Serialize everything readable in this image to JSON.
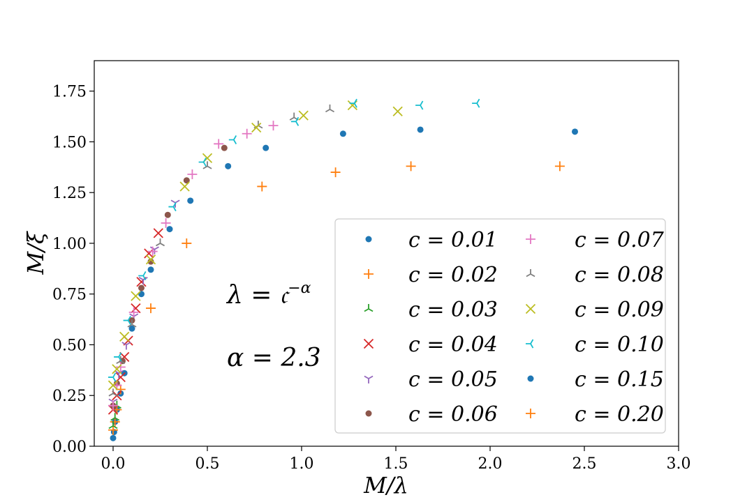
{
  "chart_data": {
    "type": "scatter",
    "title": "",
    "xlabel": "M/λ",
    "ylabel": "M/ξ",
    "xlim": [
      -0.1,
      3.0
    ],
    "ylim": [
      0.0,
      1.9
    ],
    "xticks": [
      0.0,
      0.5,
      1.0,
      1.5,
      2.0,
      2.5,
      3.0
    ],
    "xtick_labels": [
      "0.0",
      "0.5",
      "1.0",
      "1.5",
      "2.0",
      "2.5",
      "3.0"
    ],
    "yticks": [
      0.0,
      0.25,
      0.5,
      0.75,
      1.0,
      1.25,
      1.5,
      1.75
    ],
    "ytick_labels": [
      "0.00",
      "0.25",
      "0.50",
      "0.75",
      "1.00",
      "1.25",
      "1.50",
      "1.75"
    ],
    "grid": false,
    "legend_position": "lower-right",
    "annotations": [
      "λ = 𝔠^{−α}",
      "α = 2.3"
    ],
    "series": [
      {
        "name": "c = 0.01",
        "color": "#1f77b4",
        "marker": "dot",
        "x": [
          0.0,
          0.005,
          0.01,
          0.02,
          0.04,
          0.06,
          0.1,
          0.15,
          0.2,
          0.3,
          0.41,
          0.61,
          0.81,
          1.22,
          1.63,
          2.45
        ],
        "y": [
          0.04,
          0.07,
          0.12,
          0.18,
          0.26,
          0.36,
          0.58,
          0.75,
          0.87,
          1.07,
          1.21,
          1.38,
          1.47,
          1.54,
          1.56,
          1.55
        ]
      },
      {
        "name": "c = 0.02",
        "color": "#ff7f0e",
        "marker": "plus",
        "x": [
          0.0,
          0.01,
          0.02,
          0.04,
          0.2,
          0.39,
          0.79,
          1.18,
          1.58,
          2.37
        ],
        "y": [
          0.08,
          0.12,
          0.18,
          0.28,
          0.68,
          1.0,
          1.28,
          1.35,
          1.38,
          1.38
        ]
      },
      {
        "name": "c = 0.03",
        "color": "#2ca02c",
        "marker": "tri_down",
        "x": [
          0.0,
          0.01,
          0.02
        ],
        "y": [
          0.1,
          0.14,
          0.2
        ]
      },
      {
        "name": "c = 0.04",
        "color": "#d62728",
        "marker": "x",
        "x": [
          0.0,
          0.02,
          0.04,
          0.06,
          0.08,
          0.12,
          0.15,
          0.19,
          0.24
        ],
        "y": [
          0.18,
          0.25,
          0.34,
          0.44,
          0.52,
          0.68,
          0.81,
          0.95,
          1.05
        ]
      },
      {
        "name": "c = 0.05",
        "color": "#9467bd",
        "marker": "tri_up",
        "x": [
          0.0,
          0.03,
          0.07,
          0.11,
          0.16,
          0.22,
          0.33
        ],
        "y": [
          0.22,
          0.36,
          0.5,
          0.64,
          0.82,
          0.97,
          1.2
        ]
      },
      {
        "name": "c = 0.06",
        "color": "#8c564b",
        "marker": "dot",
        "x": [
          0.0,
          0.02,
          0.05,
          0.1,
          0.15,
          0.2,
          0.29,
          0.39,
          0.59
        ],
        "y": [
          0.2,
          0.31,
          0.42,
          0.62,
          0.78,
          0.91,
          1.14,
          1.31,
          1.47
        ]
      },
      {
        "name": "c = 0.07",
        "color": "#e377c2",
        "marker": "plus",
        "x": [
          0.0,
          0.02,
          0.04,
          0.11,
          0.21,
          0.28,
          0.42,
          0.56,
          0.71,
          0.85
        ],
        "y": [
          0.2,
          0.3,
          0.39,
          0.66,
          0.96,
          1.1,
          1.34,
          1.49,
          1.54,
          1.58
        ]
      },
      {
        "name": "c = 0.08",
        "color": "#7f7f7f",
        "marker": "tri_down",
        "x": [
          0.0,
          0.04,
          0.1,
          0.25,
          0.5,
          0.77,
          0.96,
          1.15
        ],
        "y": [
          0.26,
          0.42,
          0.6,
          1.0,
          1.38,
          1.58,
          1.62,
          1.66
        ]
      },
      {
        "name": "c = 0.09",
        "color": "#bcbd22",
        "marker": "x",
        "x": [
          0.0,
          0.02,
          0.06,
          0.12,
          0.2,
          0.38,
          0.5,
          0.76,
          1.01,
          1.27,
          1.51
        ],
        "y": [
          0.3,
          0.38,
          0.54,
          0.74,
          0.92,
          1.28,
          1.42,
          1.57,
          1.63,
          1.68,
          1.65
        ]
      },
      {
        "name": "c = 0.10",
        "color": "#17becf",
        "marker": "tri_left",
        "x": [
          0.0,
          0.03,
          0.08,
          0.16,
          0.32,
          0.48,
          0.64,
          0.97,
          1.28,
          1.63,
          1.93
        ],
        "y": [
          0.34,
          0.44,
          0.62,
          0.84,
          1.18,
          1.4,
          1.51,
          1.6,
          1.69,
          1.68,
          1.69
        ]
      },
      {
        "name": "c = 0.15",
        "color": "#1f77b4",
        "marker": "dot",
        "x": [],
        "y": []
      },
      {
        "name": "c = 0.20",
        "color": "#ff7f0e",
        "marker": "plus",
        "x": [],
        "y": []
      }
    ]
  }
}
